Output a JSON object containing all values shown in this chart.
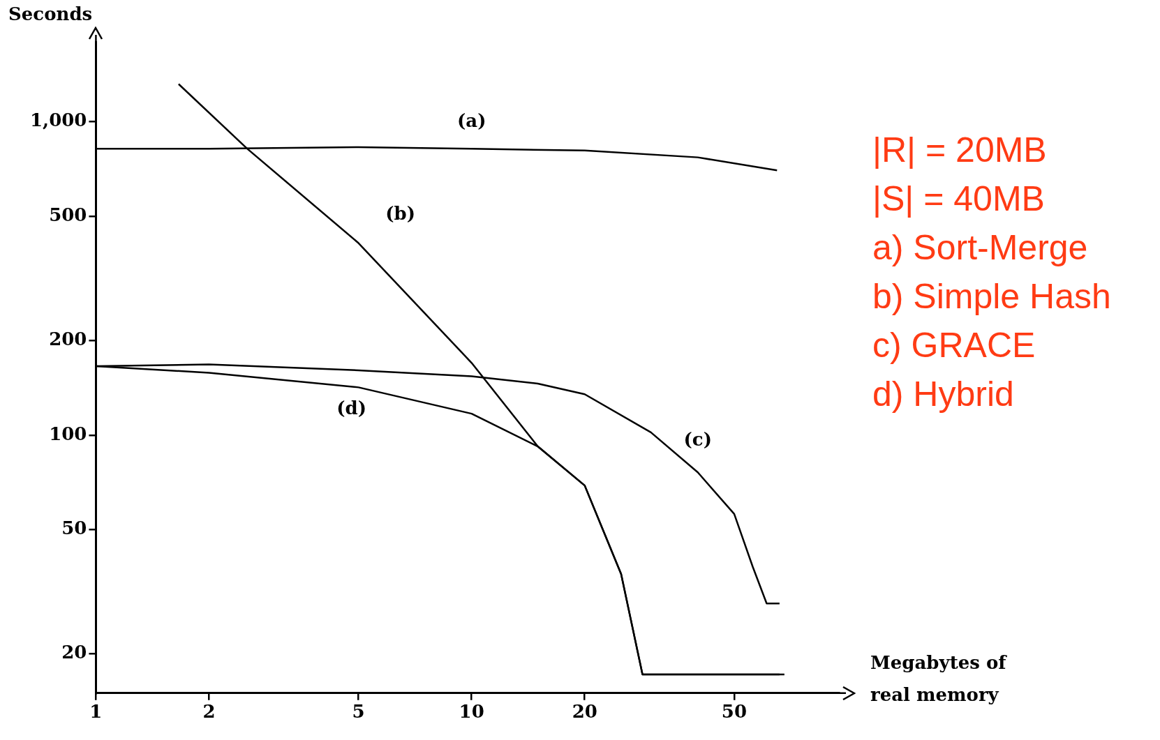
{
  "chart_data": {
    "type": "line",
    "xlabel": "Megabytes of real memory",
    "ylabel": "Seconds",
    "log": "xy",
    "xlim": [
      1,
      95
    ],
    "ylim": [
      15,
      1800
    ],
    "xticks": [
      1,
      2,
      5,
      10,
      20,
      50
    ],
    "yticks": [
      20,
      50,
      100,
      200,
      500,
      {
        "value": 1000,
        "label": "1,000"
      }
    ],
    "grid": false,
    "legend": false,
    "marker": "none",
    "line_style": "solid",
    "series": [
      {
        "name": "(a)",
        "color": "#000000",
        "x": [
          1,
          2,
          5,
          10,
          20,
          40,
          65
        ],
        "values": [
          820,
          820,
          830,
          820,
          810,
          770,
          700
        ]
      },
      {
        "name": "(b)",
        "color": "#000000",
        "x": [
          1.66,
          2.53,
          5,
          10,
          15,
          20,
          25,
          28.5,
          68
        ],
        "values": [
          1320,
          820,
          410,
          170,
          92,
          69,
          36,
          17.2,
          17.2
        ]
      },
      {
        "name": "(c)",
        "color": "#000000",
        "x": [
          1,
          2,
          5,
          10,
          15,
          20,
          30,
          40,
          50,
          56,
          61,
          66
        ],
        "values": [
          166,
          168,
          161,
          154,
          146,
          135,
          102,
          76,
          56,
          38,
          29,
          29
        ]
      },
      {
        "name": "(d)",
        "color": "#000000",
        "x": [
          1,
          2,
          5,
          10,
          15,
          20,
          25,
          28.5,
          66
        ],
        "values": [
          166,
          158,
          142,
          117,
          92,
          69,
          36,
          17.2,
          17.2
        ]
      }
    ],
    "annotations": [
      "|R| = 20MB",
      "|S| = 40MB",
      "a) Sort-Merge",
      "b) Simple Hash",
      "c) GRACE",
      "d) Hybrid"
    ]
  }
}
